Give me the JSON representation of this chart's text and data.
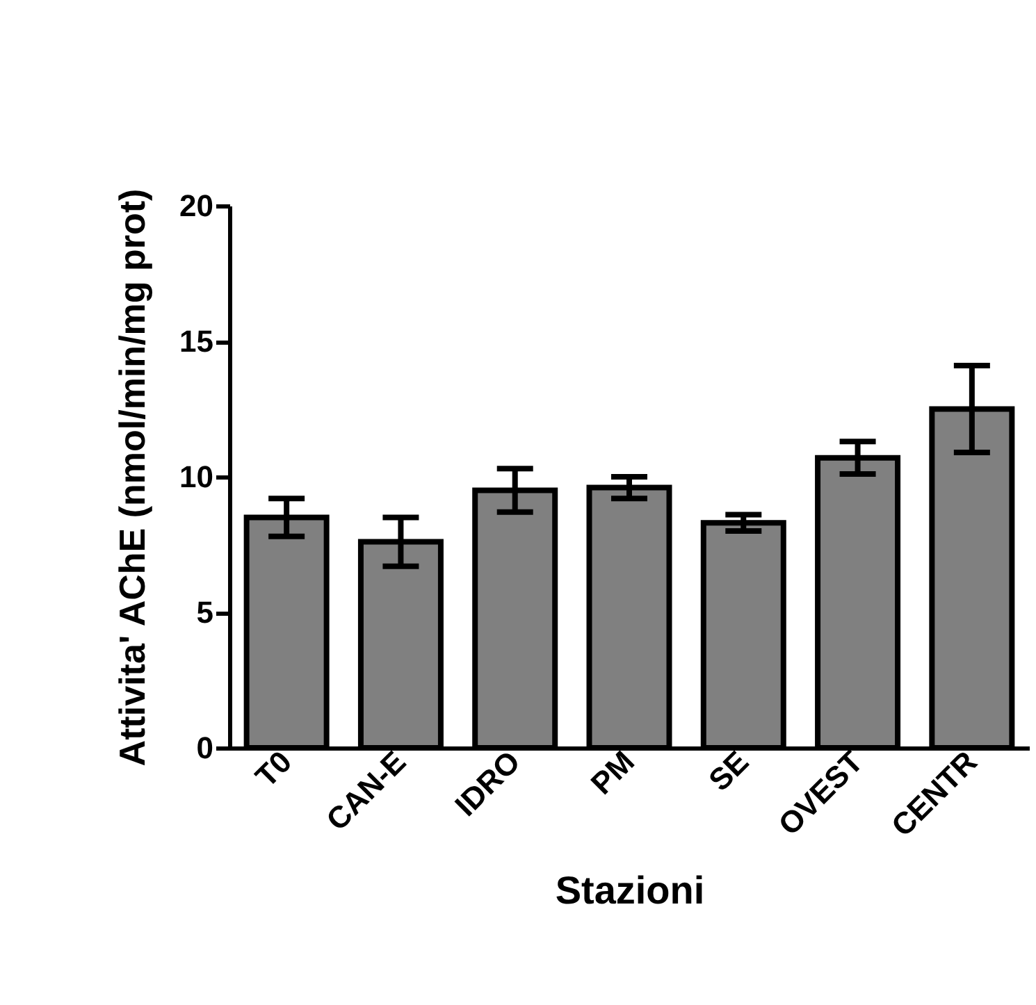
{
  "chart_data": {
    "type": "bar",
    "xlabel": "Stazioni",
    "ylabel": "Attivita' AChE (nmol/min/mg prot)",
    "categories": [
      "T0",
      "CAN-E",
      "IDRO",
      "PM",
      "SE",
      "OVEST",
      "CENTR"
    ],
    "values": [
      8.5,
      7.6,
      9.5,
      9.6,
      8.3,
      10.7,
      12.5
    ],
    "errors": [
      0.7,
      0.9,
      0.8,
      0.4,
      0.3,
      0.6,
      1.6
    ],
    "color": "#808080",
    "ylim": [
      0,
      20
    ],
    "yticks": [
      0,
      5,
      10,
      15,
      20
    ],
    "grid": false
  }
}
